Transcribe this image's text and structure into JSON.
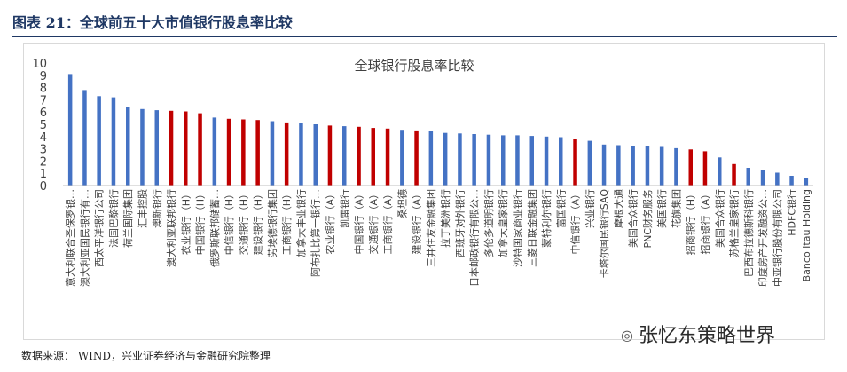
{
  "header": {
    "title": "图表 21：全球前五十大市值银行股息率比较"
  },
  "footer": {
    "source": "数据来源： WIND，兴业证券经济与金融研究院整理"
  },
  "watermark": {
    "text": "张忆东策略世界",
    "icon": "wechat-icon"
  },
  "colors": {
    "blue": "#4472c4",
    "red": "#c00000",
    "axis": "#bfbfbf",
    "text": "#404040"
  },
  "chart_data": {
    "type": "bar",
    "title": "全球银行股息率比较",
    "xlabel": "",
    "ylabel": "",
    "ylim": [
      0,
      10
    ],
    "yticks": [
      0,
      1,
      2,
      3,
      4,
      5,
      6,
      7,
      8,
      9,
      10
    ],
    "grid": false,
    "legend": "none",
    "categories": [
      "意大利联合圣保罗银…",
      "澳大利亚国民银行有…",
      "西太平洋银行公司",
      "法国巴黎银行",
      "荷兰国际集团",
      "汇丰控股",
      "澳新银行",
      "澳大利亚联邦银行",
      "农业银行（H）",
      "中国银行（H）",
      "俄罗斯联邦储蓄…",
      "中信银行（H）",
      "交通银行（H）",
      "建设银行（H）",
      "劳埃德银行集团",
      "工商银行（H）",
      "加拿大丰业银行",
      "阿布扎比第一银行…",
      "农业银行（A）",
      "凯雷银行",
      "中国银行（A）",
      "交通银行（A）",
      "工商银行（A）",
      "桑坦德",
      "建设银行（A）",
      "三井住友金融集团",
      "拉丁美洲银行",
      "西班牙对外银行",
      "日本邮政银行有限公…",
      "多伦多道明银行",
      "加拿大皇家银行",
      "沙特国家商业银行",
      "三菱日联金融集团",
      "蒙特利尔银行",
      "富国银行",
      "中信银行（A）",
      "兴业银行",
      "卡塔尔国民银行SAQ",
      "摩根大通",
      "美国合众银行",
      "PNC财务服务",
      "美国银行",
      "花旗集团",
      "招商银行（H）",
      "招商银行（A）",
      "美国合众银行",
      "苏格兰皇家银行",
      "巴西布拉德斯科银行",
      "印度房产开发融资公…",
      "中亚银行股份有限公司",
      "HDFC银行",
      "Banco Itau Holding"
    ],
    "values": [
      9.1,
      7.8,
      7.3,
      7.2,
      6.4,
      6.25,
      6.15,
      6.1,
      6.05,
      5.9,
      5.55,
      5.45,
      5.4,
      5.35,
      5.25,
      5.15,
      5.1,
      5.0,
      4.9,
      4.85,
      4.8,
      4.7,
      4.65,
      4.55,
      4.5,
      4.45,
      4.3,
      4.25,
      4.2,
      4.15,
      4.1,
      4.1,
      4.05,
      4.0,
      3.95,
      3.8,
      3.65,
      3.35,
      3.3,
      3.25,
      3.2,
      3.15,
      3.05,
      2.95,
      2.8,
      2.3,
      1.75,
      1.45,
      1.25,
      1.05,
      0.8,
      0.6
    ],
    "colors": [
      "blue",
      "blue",
      "blue",
      "blue",
      "blue",
      "blue",
      "blue",
      "red",
      "red",
      "red",
      "blue",
      "red",
      "red",
      "red",
      "blue",
      "red",
      "blue",
      "blue",
      "red",
      "blue",
      "red",
      "red",
      "red",
      "blue",
      "red",
      "blue",
      "blue",
      "blue",
      "blue",
      "blue",
      "blue",
      "blue",
      "blue",
      "blue",
      "blue",
      "red",
      "blue",
      "blue",
      "blue",
      "blue",
      "blue",
      "blue",
      "blue",
      "red",
      "red",
      "blue",
      "red",
      "blue",
      "blue",
      "blue",
      "blue",
      "blue"
    ]
  }
}
